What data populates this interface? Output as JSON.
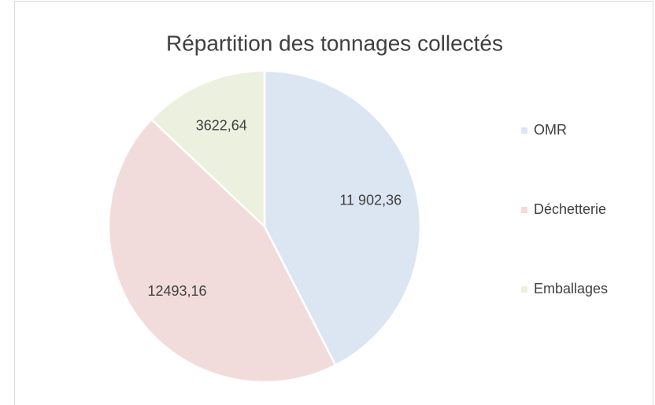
{
  "chart_data": {
    "type": "pie",
    "title": "Répartition des tonnages collectés",
    "categories": [
      "OMR",
      "Déchetterie",
      "Emballages"
    ],
    "values": [
      11902.36,
      12493.16,
      3622.64
    ],
    "value_labels": [
      "11 902,36",
      "12493,16",
      "3622,64"
    ],
    "colors": [
      "#dce6f2",
      "#f2dcdb",
      "#ebf1de"
    ],
    "legend": "right"
  }
}
